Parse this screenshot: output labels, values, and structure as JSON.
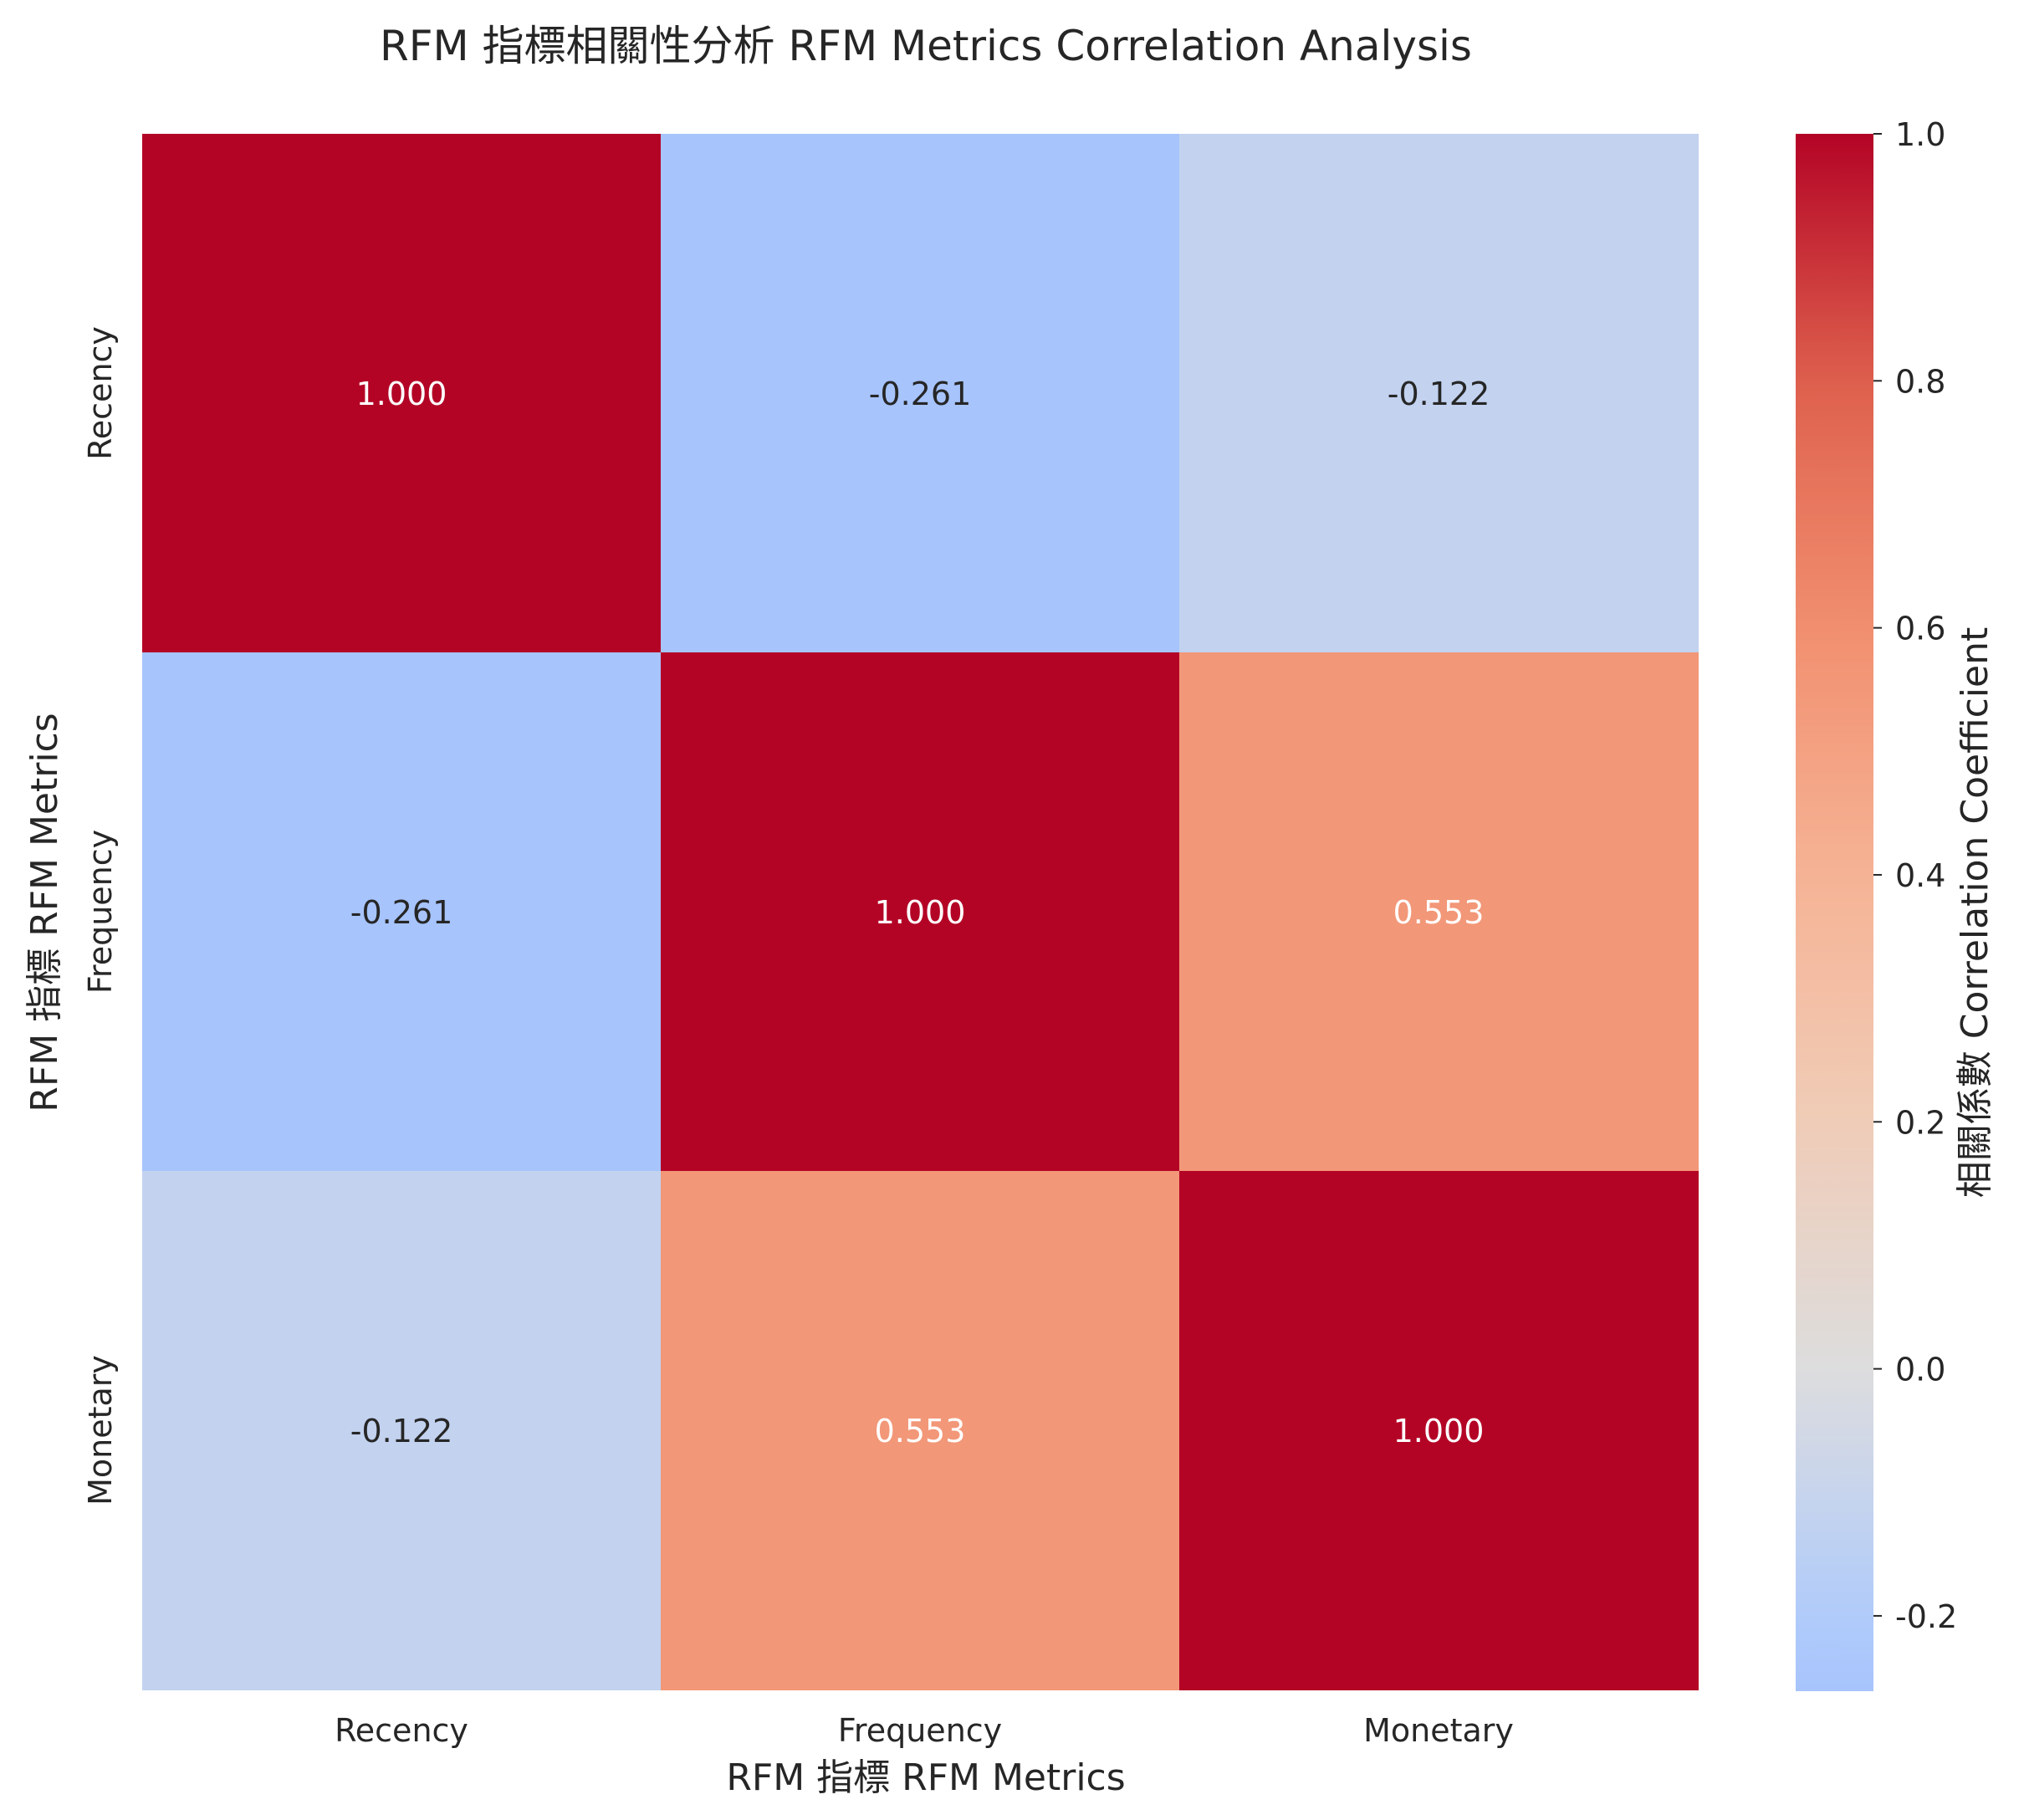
{
  "chart_data": {
    "type": "heatmap",
    "title": "RFM 指標相關性分析 RFM Metrics Correlation Analysis",
    "xlabel": "RFM 指標 RFM Metrics",
    "ylabel": "RFM 指標 RFM Metrics",
    "x_categories": [
      "Recency",
      "Frequency",
      "Monetary"
    ],
    "y_categories": [
      "Recency",
      "Frequency",
      "Monetary"
    ],
    "values": [
      [
        1.0,
        -0.261,
        -0.122
      ],
      [
        -0.261,
        1.0,
        0.553
      ],
      [
        -0.122,
        0.553,
        1.0
      ]
    ],
    "cell_labels": [
      [
        "1.000",
        "-0.261",
        "-0.122"
      ],
      [
        "-0.261",
        "1.000",
        "0.553"
      ],
      [
        "-0.122",
        "0.553",
        "1.000"
      ]
    ],
    "colorbar": {
      "label": "相關係數 Correlation Coefficient",
      "range": [
        -0.261,
        1.0
      ],
      "ticks": [
        -0.2,
        0.0,
        0.2,
        0.4,
        0.6,
        0.8,
        1.0
      ],
      "tick_labels": [
        "-0.2",
        "0.0",
        "0.2",
        "0.4",
        "0.6",
        "0.8",
        "1.0"
      ],
      "colormap": "coolwarm",
      "center": 0.0
    },
    "grid": false
  }
}
